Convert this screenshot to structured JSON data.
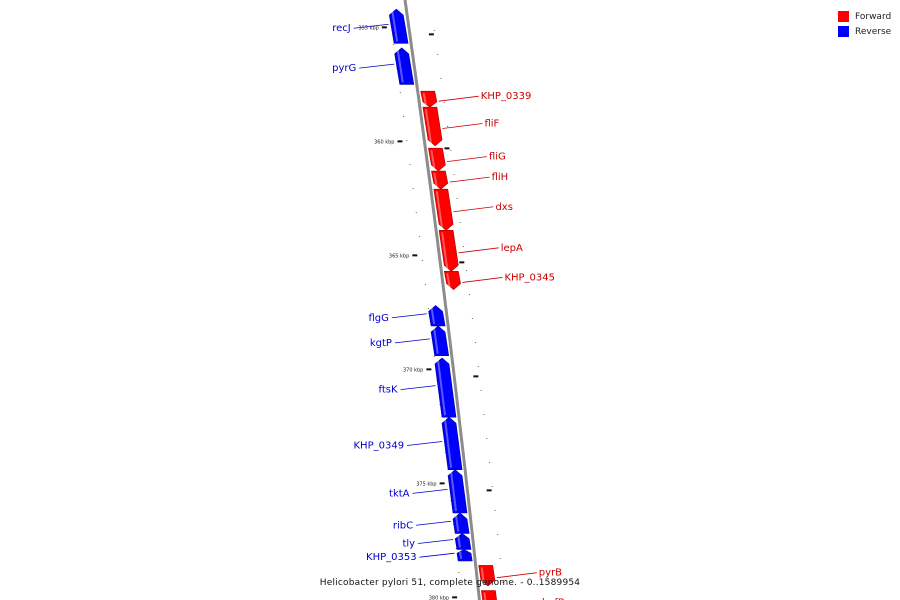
{
  "colors": {
    "forward": "#ff0000",
    "reverse": "#0000ff",
    "forward_label": "#cc0000",
    "reverse_label": "#0000cc",
    "backbone": "#8c8c8c"
  },
  "legend": [
    {
      "label": "Forward",
      "color": "#ff0000"
    },
    {
      "label": "Reverse",
      "color": "#0000ff"
    }
  ],
  "footer": "Helicobacter pylori 51, complete genome. - 0..1589954",
  "ticks": [
    {
      "kbp": 355,
      "label": "355 kbp"
    },
    {
      "kbp": 360,
      "label": "360 kbp"
    },
    {
      "kbp": 365,
      "label": "365 kbp"
    },
    {
      "kbp": 370,
      "label": "370 kbp"
    },
    {
      "kbp": 375,
      "label": "375 kbp"
    },
    {
      "kbp": 380,
      "label": "380 kbp"
    }
  ],
  "genes": [
    {
      "name": "recJ",
      "strand": "reverse",
      "start": 354.2,
      "end": 355.7
    },
    {
      "name": "pyrG",
      "strand": "reverse",
      "start": 355.9,
      "end": 357.5
    },
    {
      "name": "KHP_0339",
      "strand": "forward",
      "start": 357.8,
      "end": 358.5
    },
    {
      "name": "fliF",
      "strand": "forward",
      "start": 358.5,
      "end": 360.2
    },
    {
      "name": "fliG",
      "strand": "forward",
      "start": 360.3,
      "end": 361.3
    },
    {
      "name": "fliH",
      "strand": "forward",
      "start": 361.3,
      "end": 362.1
    },
    {
      "name": "dxs",
      "strand": "forward",
      "start": 362.1,
      "end": 363.9
    },
    {
      "name": "lepA",
      "strand": "forward",
      "start": 363.9,
      "end": 365.7
    },
    {
      "name": "KHP_0345",
      "strand": "forward",
      "start": 365.7,
      "end": 366.5
    },
    {
      "name": "flgG",
      "strand": "reverse",
      "start": 367.2,
      "end": 368.1
    },
    {
      "name": "kgtP",
      "strand": "reverse",
      "start": 368.1,
      "end": 369.4
    },
    {
      "name": "ftsK",
      "strand": "reverse",
      "start": 369.5,
      "end": 372.1
    },
    {
      "name": "KHP_0349",
      "strand": "reverse",
      "start": 372.1,
      "end": 374.4
    },
    {
      "name": "tktA",
      "strand": "reverse",
      "start": 374.4,
      "end": 376.3
    },
    {
      "name": "ribC",
      "strand": "reverse",
      "start": 376.3,
      "end": 377.2
    },
    {
      "name": "tly",
      "strand": "reverse",
      "start": 377.2,
      "end": 377.9
    },
    {
      "name": "KHP_0353",
      "strand": "reverse",
      "start": 377.9,
      "end": 378.4
    },
    {
      "name": "pyrB",
      "strand": "forward",
      "start": 378.6,
      "end": 379.5
    },
    {
      "name": "hofB",
      "strand": "forward",
      "start": 379.7,
      "end": 381.0
    }
  ]
}
